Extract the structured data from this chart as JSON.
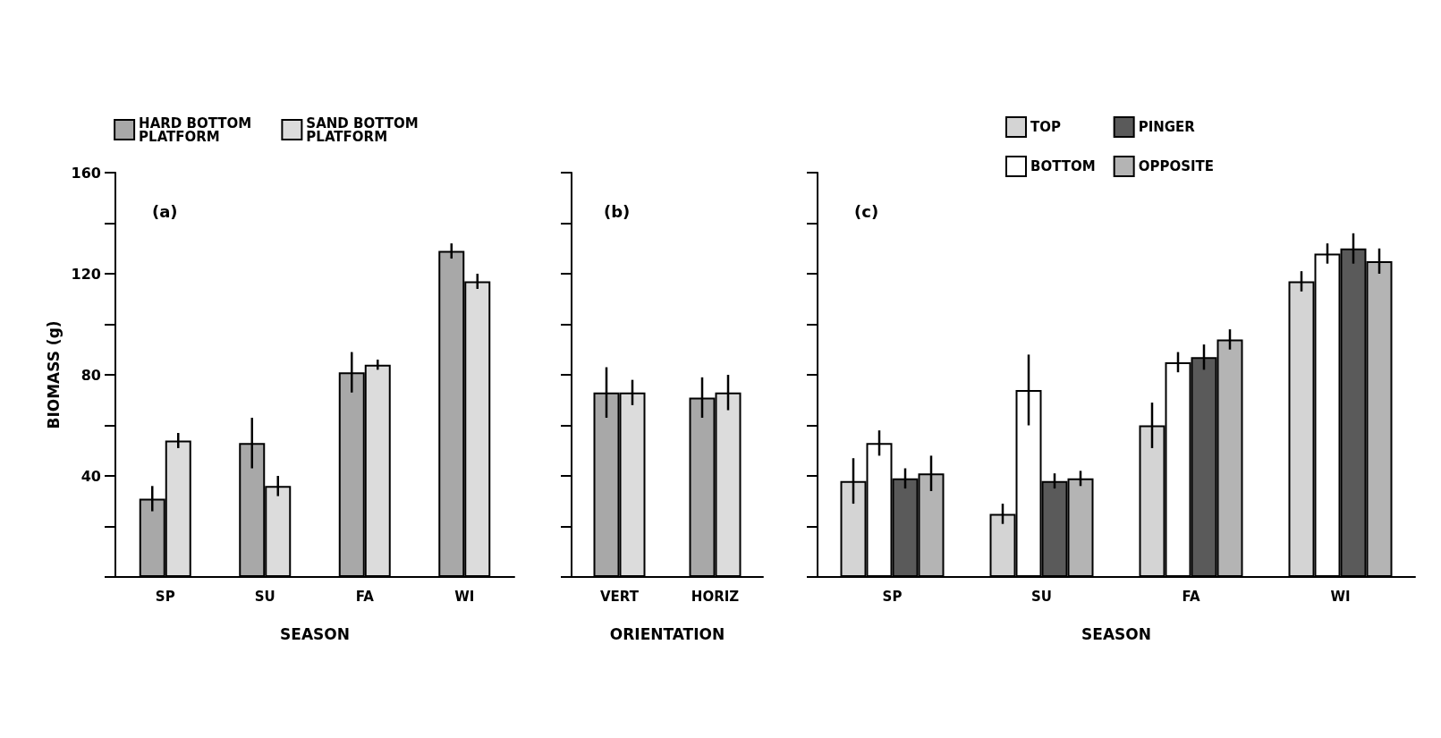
{
  "chart_data": [
    {
      "type": "bar",
      "title": "(a)",
      "xlabel": "SEASON",
      "ylabel": "BIOMASS (g)",
      "categories": [
        "SP",
        "SU",
        "FA",
        "WI"
      ],
      "series": [
        {
          "name": "HARD BOTTOM PLATFORM",
          "color": "#a8a8a8",
          "values": [
            31,
            53,
            81,
            129
          ],
          "errors": [
            5,
            10,
            8,
            3
          ]
        },
        {
          "name": "SAND BOTTOM PLATFORM",
          "color": "#dcdcdc",
          "values": [
            54,
            36,
            84,
            117
          ],
          "errors": [
            3,
            4,
            2,
            3
          ]
        }
      ],
      "ylim": [
        0,
        160
      ],
      "yticks": [
        {
          "value": 0,
          "label": null
        },
        {
          "value": 20,
          "label": null
        },
        40,
        {
          "value": 60,
          "label": null
        },
        80,
        {
          "value": 100,
          "label": null
        },
        120,
        {
          "value": 140,
          "label": null
        },
        160
      ],
      "legend": "top"
    },
    {
      "type": "bar",
      "title": "(b)",
      "xlabel": "ORIENTATION",
      "categories": [
        "VERT",
        "HORIZ"
      ],
      "series": [
        {
          "color": "#a8a8a8",
          "values": [
            73,
            71
          ],
          "errors": [
            10,
            8
          ]
        },
        {
          "color": "#dcdcdc",
          "values": [
            73,
            73
          ],
          "errors": [
            5,
            7
          ]
        }
      ],
      "ylim": [
        0,
        160
      ],
      "yticks": [
        {
          "value": 0,
          "label": null
        },
        {
          "value": 20,
          "label": null
        },
        {
          "value": 40,
          "label": null
        },
        {
          "value": 60,
          "label": null
        },
        {
          "value": 80,
          "label": null
        },
        {
          "value": 100,
          "label": null
        },
        {
          "value": 120,
          "label": null
        },
        {
          "value": 140,
          "label": null
        },
        {
          "value": 160,
          "label": null
        }
      ],
      "tick_labels": "x"
    },
    {
      "type": "bar",
      "title": "(c)",
      "xlabel": "SEASON",
      "categories": [
        "SP",
        "SU",
        "FA",
        "WI"
      ],
      "series": [
        {
          "name": "TOP",
          "color": "#d4d4d4",
          "values": [
            38,
            25,
            60,
            117
          ],
          "errors": [
            9,
            4,
            9,
            4
          ]
        },
        {
          "name": "BOTTOM",
          "color": "#ffffff",
          "values": [
            53,
            74,
            85,
            128
          ],
          "errors": [
            5,
            14,
            4,
            4
          ]
        },
        {
          "name": "PINGER",
          "color": "#5a5a5a",
          "values": [
            39,
            38,
            87,
            130
          ],
          "errors": [
            4,
            3,
            5,
            6
          ]
        },
        {
          "name": "OPPOSITE",
          "color": "#b4b4b4",
          "values": [
            41,
            39,
            94,
            125
          ],
          "errors": [
            7,
            3,
            4,
            5
          ]
        }
      ],
      "ylim": [
        0,
        160
      ],
      "yticks": [
        {
          "value": 0,
          "label": null
        },
        {
          "value": 20,
          "label": null
        },
        {
          "value": 40,
          "label": null
        },
        {
          "value": 60,
          "label": null
        },
        {
          "value": 80,
          "label": null
        },
        {
          "value": 100,
          "label": null
        },
        {
          "value": 120,
          "label": null
        },
        {
          "value": 140,
          "label": null
        },
        {
          "value": 160,
          "label": null
        }
      ],
      "tick_labels": "x",
      "legend": "top"
    }
  ]
}
